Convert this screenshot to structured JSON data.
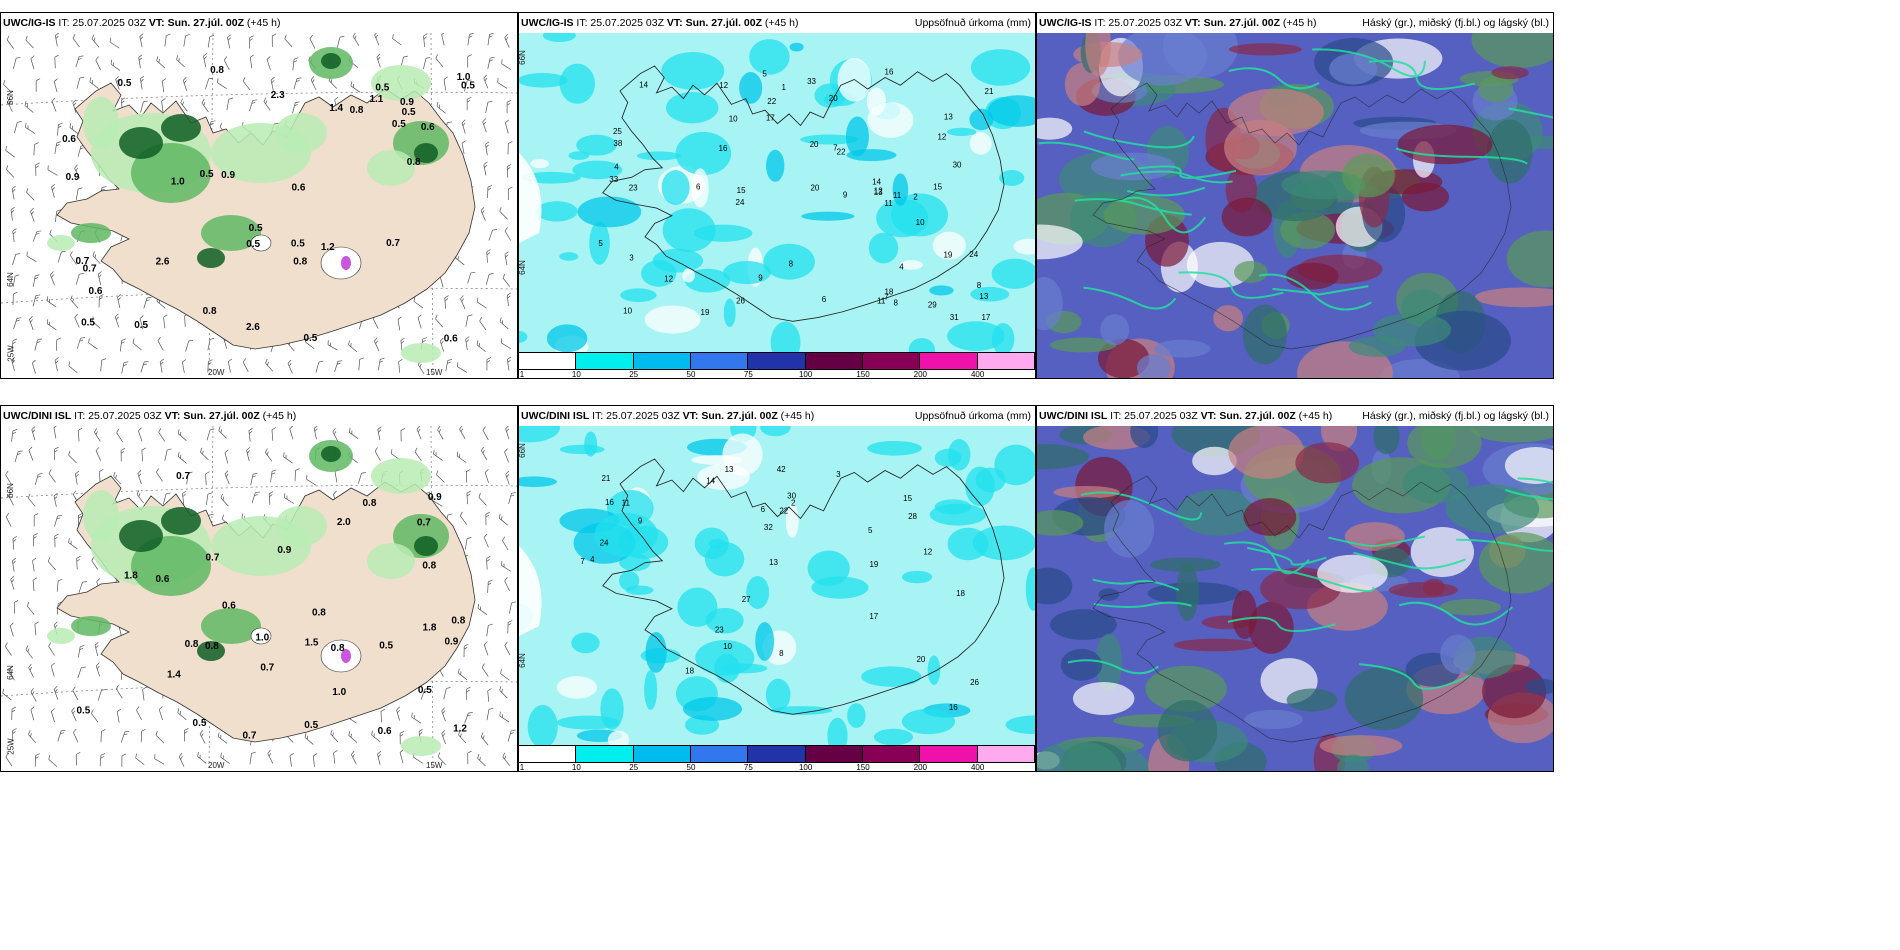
{
  "panels": [
    {
      "model": "UWC/IG-IS",
      "it": " IT: 25.07.2025 03Z ",
      "vt_label": "VT:",
      "vt": " Sun. 27.júl. 00Z",
      "lead": " (+45 h)",
      "right": ""
    },
    {
      "model": "UWC/IG-IS",
      "it": " IT: 25.07.2025 03Z ",
      "vt_label": "VT:",
      "vt": " Sun. 27.júl. 00Z",
      "lead": " (+45 h)",
      "right": "Uppsöfnuð úrkoma (mm)"
    },
    {
      "model": "UWC/IG-IS",
      "it": " IT: 25.07.2025 03Z ",
      "vt_label": "VT:",
      "vt": " Sun. 27.júl. 00Z",
      "lead": " (+45 h)",
      "right": "Háský (gr.), miðský (fj.bl.) og lágský (bl.)"
    },
    {
      "model": "UWC/DINI ISL",
      "it": " IT: 25.07.2025 03Z ",
      "vt_label": "VT:",
      "vt": " Sun. 27.júl. 00Z",
      "lead": " (+45 h)",
      "right": ""
    },
    {
      "model": "UWC/DINI ISL",
      "it": " IT: 25.07.2025 03Z ",
      "vt_label": "VT:",
      "vt": " Sun. 27.júl. 00Z",
      "lead": " (+45 h)",
      "right": "Uppsöfnuð úrkoma (mm)"
    },
    {
      "model": "UWC/DINI ISL",
      "it": " IT: 25.07.2025 03Z ",
      "vt_label": "VT:",
      "vt": " Sun. 27.júl. 00Z",
      "lead": " (+45 h)",
      "right": "Háský (gr.), miðský (fj.bl.) og lágský (bl.)"
    }
  ],
  "axes": {
    "lat66": "66N",
    "lat64": "64N",
    "lon20": "20W",
    "lon15": "15W",
    "lat25": "25W"
  },
  "colorbar": {
    "colors": [
      "#ffffff",
      "#00eeee",
      "#00bbee",
      "#3377ee",
      "#2233aa",
      "#660044",
      "#880055",
      "#ee11aa",
      "#ffaaee"
    ],
    "ticks": [
      "1",
      "10",
      "25",
      "50",
      "75",
      "100",
      "150",
      "200",
      "400"
    ]
  },
  "labels": {
    "p1": [
      "0.5",
      "1.2",
      "0.6",
      "1.4",
      "0.5",
      "0.7",
      "1.0",
      "2.6",
      "0.8",
      "1.1",
      "0.8",
      "0.7",
      "0.5",
      "2.6",
      "0.5",
      "0.8",
      "0.6",
      "0.9",
      "0.5",
      "1.0",
      "0.5",
      "0.5",
      "0.7",
      "0.9",
      "0.6",
      "0.5",
      "0.8",
      "0.9",
      "2.3",
      "0.8",
      "0.5",
      "0.6",
      "0.5",
      "0.5",
      "0.6",
      "0.5"
    ],
    "p2": [
      "12",
      "25",
      "9",
      "11",
      "10",
      "13",
      "6",
      "13",
      "20",
      "14",
      "7",
      "8",
      "10",
      "16",
      "19",
      "33",
      "24",
      "5",
      "22",
      "38",
      "19",
      "30",
      "8",
      "13",
      "11",
      "4",
      "9",
      "22",
      "17",
      "21",
      "15",
      "23",
      "17",
      "29",
      "10",
      "18",
      "12",
      "16",
      "20",
      "11",
      "26",
      "31",
      "12",
      "12",
      "8",
      "15",
      "24",
      "14",
      "33",
      "20",
      "7",
      "2",
      "1",
      "3",
      "5",
      "4",
      "6"
    ],
    "p4": [
      "1.8",
      "0.8",
      "0.7",
      "0.7",
      "0.5",
      "0.6",
      "0.8",
      "1.0",
      "0.9",
      "0.8",
      "0.7",
      "1.4",
      "0.9",
      "0.8",
      "2.0",
      "0.7",
      "0.5",
      "0.9",
      "0.8",
      "0.6",
      "1.8",
      "0.6",
      "0.8",
      "0.5",
      "0.5",
      "0.7",
      "0.5",
      "0.8",
      "1.5",
      "1.2",
      "1.0"
    ],
    "p5": [
      "13",
      "20",
      "15",
      "17",
      "23",
      "18",
      "16",
      "24",
      "19",
      "12",
      "14",
      "22",
      "27",
      "32",
      "18",
      "21",
      "28",
      "10",
      "9",
      "5",
      "11",
      "7",
      "8",
      "30",
      "26",
      "42",
      "16",
      "13",
      "4",
      "3",
      "2",
      "6"
    ]
  }
}
